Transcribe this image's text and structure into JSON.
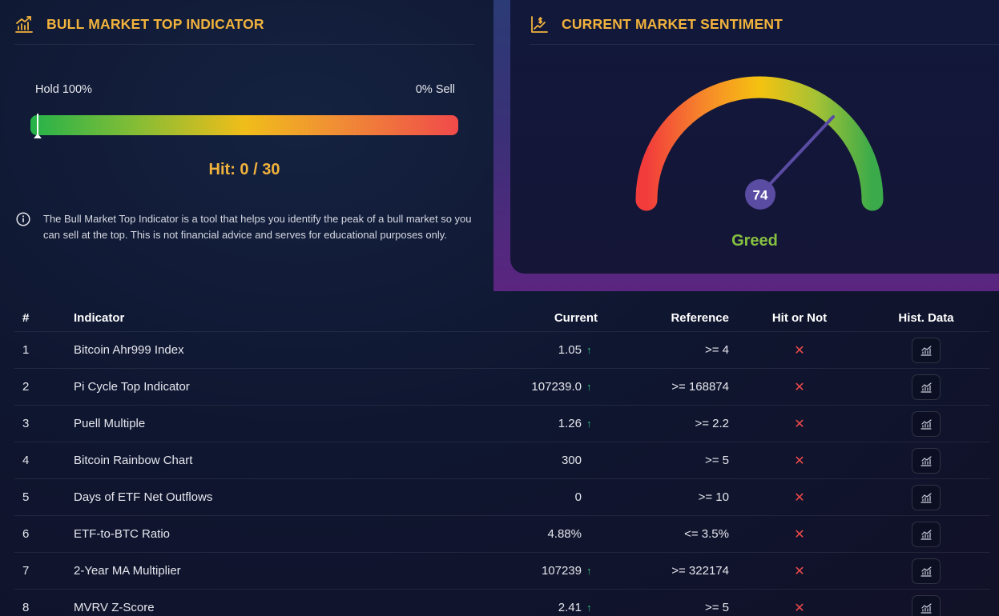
{
  "bull_panel": {
    "title": "BULL MARKET TOP INDICATOR",
    "title_icon": "bar-chart-trend-icon",
    "bar_left_label": "Hold 100%",
    "bar_right_label": "0% Sell",
    "bar_position": 0.0,
    "hit_text": "Hit: 0 / 30",
    "info_icon": "info-circle-icon",
    "info_text": "The Bull Market Top Indicator is a tool that helps you identify the peak of a bull market so you can sell at the top. This is not financial advice and serves for educational purposes only."
  },
  "sentiment_panel": {
    "title": "CURRENT MARKET SENTIMENT",
    "title_icon": "chart-dollar-icon",
    "gauge_value": "74",
    "gauge_value_num": 74,
    "gauge_max": 100,
    "label": "Greed"
  },
  "table": {
    "headers": {
      "num": "#",
      "indicator": "Indicator",
      "current": "Current",
      "reference": "Reference",
      "hit": "Hit or Not",
      "hist": "Hist. Data"
    },
    "rows": [
      {
        "num": "1",
        "indicator": "Bitcoin Ahr999 Index",
        "current": "1.05",
        "trend": "up",
        "reference": ">= 4",
        "hit": "✕"
      },
      {
        "num": "2",
        "indicator": "Pi Cycle Top Indicator",
        "current": "107239.0",
        "trend": "up",
        "reference": ">= 168874",
        "hit": "✕"
      },
      {
        "num": "3",
        "indicator": "Puell Multiple",
        "current": "1.26",
        "trend": "up",
        "reference": ">= 2.2",
        "hit": "✕"
      },
      {
        "num": "4",
        "indicator": "Bitcoin Rainbow Chart",
        "current": "300",
        "trend": "none",
        "reference": ">= 5",
        "hit": "✕"
      },
      {
        "num": "5",
        "indicator": "Days of ETF Net Outflows",
        "current": "0",
        "trend": "none",
        "reference": ">= 10",
        "hit": "✕"
      },
      {
        "num": "6",
        "indicator": "ETF-to-BTC Ratio",
        "current": "4.88%",
        "trend": "none",
        "reference": "<= 3.5%",
        "hit": "✕"
      },
      {
        "num": "7",
        "indicator": "2-Year MA Multiplier",
        "current": "107239",
        "trend": "up",
        "reference": ">= 322174",
        "hit": "✕"
      },
      {
        "num": "8",
        "indicator": "MVRV Z-Score",
        "current": "2.41",
        "trend": "up",
        "reference": ">= 5",
        "hit": "✕"
      }
    ],
    "hist_icon": "mini-chart-icon"
  },
  "colors": {
    "accent_gold": "#f2b33d",
    "greed_green": "#86c040",
    "miss_red": "#ef4a4a",
    "trend_green": "#2ec27e",
    "gauge_knob": "#5a4ba3"
  }
}
